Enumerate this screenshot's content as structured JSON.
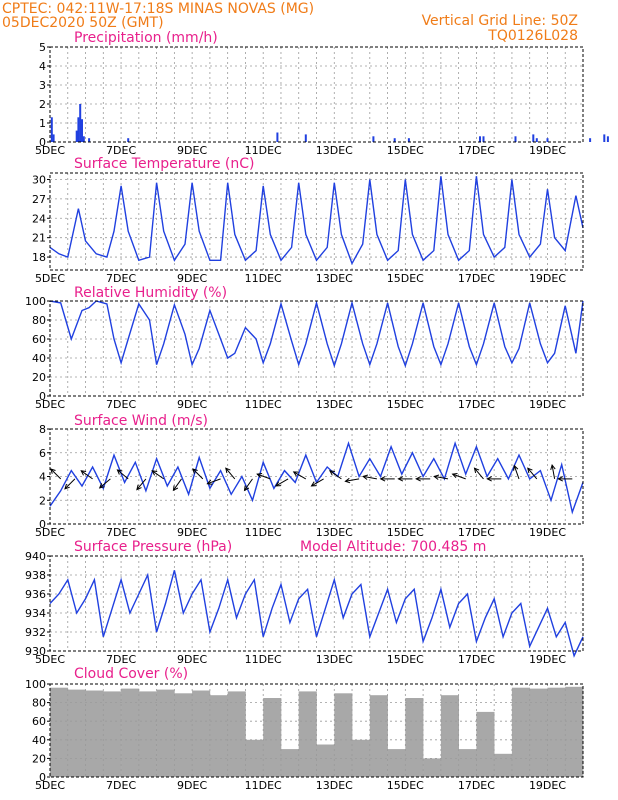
{
  "header": {
    "line1_left": "CPTEC:   042:11W-17:18S   MINAS NOVAS (MG)",
    "line2_left": "05DEC2020 50Z (GMT)",
    "line1_right": "Vertical Grid Line: 50Z",
    "line2_right": "TQ0126L028"
  },
  "colors": {
    "header": "#f07c18",
    "panel_title": "#e8208c",
    "series": "#2040e0",
    "cloud": "#a8a8a8",
    "wind_arrow": "#000000"
  },
  "chart_data": [
    {
      "type": "bar",
      "title": "Precipitation (mm/h)",
      "ylim": [
        0,
        5
      ],
      "yticks": [
        "0",
        "1",
        "2",
        "3",
        "4",
        "5"
      ],
      "xticks": [
        "5DEC",
        "7DEC",
        "9DEC",
        "11DEC",
        "13DEC",
        "15DEC",
        "17DEC",
        "19DEC"
      ],
      "xlim_days": [
        0,
        15
      ],
      "grid": true,
      "x": [
        0.05,
        0.1,
        0.75,
        0.8,
        0.85,
        0.9,
        0.95,
        1.1,
        2.2,
        6.4,
        7.2,
        9.1,
        9.7,
        10.1,
        12.1,
        12.2,
        13.1,
        13.6,
        13.7,
        14.0,
        15.2,
        15.6,
        15.7,
        16.4,
        16.5,
        16.9,
        17.1,
        17.2,
        17.3,
        17.4,
        17.5,
        17.6,
        17.7,
        17.8,
        17.9
      ],
      "values": [
        1.3,
        0.4,
        0.6,
        1.3,
        2.0,
        1.2,
        0.3,
        0.2,
        0.2,
        0.5,
        0.4,
        0.3,
        0.2,
        0.2,
        0.3,
        0.3,
        0.3,
        0.4,
        0.2,
        0.2,
        0.2,
        0.4,
        0.3,
        0.2,
        0.2,
        0.2,
        0.4,
        0.3,
        0.2,
        0.2,
        0.3,
        0.2,
        0.2,
        0.2,
        0.2
      ]
    },
    {
      "type": "line",
      "title": "Surface Temperature (nC)",
      "ylim": [
        16,
        31
      ],
      "yticks": [
        "18",
        "21",
        "24",
        "27",
        "30"
      ],
      "ytick_values": [
        18,
        21,
        24,
        27,
        30
      ],
      "xticks": [
        "5DEC",
        "7DEC",
        "9DEC",
        "11DEC",
        "13DEC",
        "15DEC",
        "17DEC",
        "19DEC"
      ],
      "xlim_days": [
        0,
        15
      ],
      "grid": true,
      "x": [
        0,
        0.25,
        0.5,
        0.8,
        1.0,
        1.3,
        1.6,
        1.8,
        2.0,
        2.2,
        2.5,
        2.8,
        3.0,
        3.2,
        3.5,
        3.8,
        4.0,
        4.2,
        4.5,
        4.8,
        5.0,
        5.2,
        5.5,
        5.8,
        6.0,
        6.2,
        6.5,
        6.8,
        7.0,
        7.2,
        7.5,
        7.8,
        8.0,
        8.2,
        8.5,
        8.8,
        9.0,
        9.2,
        9.5,
        9.8,
        10.0,
        10.2,
        10.5,
        10.8,
        11.0,
        11.2,
        11.5,
        11.8,
        12.0,
        12.2,
        12.5,
        12.8,
        13.0,
        13.2,
        13.5,
        13.8,
        14.0,
        14.2,
        14.5,
        14.8,
        15.0
      ],
      "values": [
        19.5,
        18.5,
        18.0,
        25.5,
        20.5,
        18.5,
        18.0,
        22.0,
        29.0,
        22.0,
        17.5,
        18.0,
        29.5,
        22.0,
        17.5,
        20.0,
        29.5,
        22.0,
        17.5,
        17.5,
        29.5,
        21.5,
        17.5,
        19.0,
        29.0,
        21.5,
        17.5,
        19.5,
        29.5,
        21.5,
        17.5,
        19.5,
        29.5,
        21.5,
        17.0,
        20.0,
        30.0,
        21.5,
        17.5,
        19.0,
        30.0,
        21.5,
        17.5,
        19.0,
        30.5,
        21.5,
        17.5,
        19.0,
        30.5,
        21.5,
        18.0,
        19.5,
        30.0,
        21.5,
        18.0,
        20.0,
        28.5,
        21.0,
        19.0,
        27.5,
        22.5
      ],
      "series_color": "#2040e0"
    },
    {
      "type": "line",
      "title": "Relative Humidity (%)",
      "ylim": [
        0,
        100
      ],
      "yticks": [
        "0",
        "20",
        "40",
        "60",
        "80",
        "100"
      ],
      "ytick_values": [
        0,
        20,
        40,
        60,
        80,
        100
      ],
      "xticks": [
        "5DEC",
        "7DEC",
        "9DEC",
        "11DEC",
        "13DEC",
        "15DEC",
        "17DEC",
        "19DEC"
      ],
      "xlim_days": [
        0,
        15
      ],
      "grid": true,
      "x": [
        0,
        0.3,
        0.6,
        0.9,
        1.1,
        1.3,
        1.6,
        1.8,
        2.0,
        2.2,
        2.5,
        2.8,
        3.0,
        3.2,
        3.5,
        3.8,
        4.0,
        4.2,
        4.5,
        4.8,
        5.0,
        5.2,
        5.5,
        5.8,
        6.0,
        6.2,
        6.5,
        6.8,
        7.0,
        7.2,
        7.5,
        7.8,
        8.0,
        8.2,
        8.5,
        8.8,
        9.0,
        9.2,
        9.5,
        9.8,
        10.0,
        10.2,
        10.5,
        10.8,
        11.0,
        11.2,
        11.5,
        11.8,
        12.0,
        12.2,
        12.5,
        12.8,
        13.0,
        13.2,
        13.5,
        13.8,
        14.0,
        14.2,
        14.5,
        14.8,
        15.0
      ],
      "values": [
        100,
        98,
        60,
        90,
        93,
        100,
        97,
        60,
        35,
        60,
        97,
        80,
        33,
        55,
        96,
        65,
        33,
        50,
        90,
        60,
        40,
        45,
        72,
        60,
        35,
        55,
        97,
        58,
        33,
        55,
        98,
        55,
        32,
        55,
        98,
        55,
        33,
        55,
        98,
        52,
        32,
        55,
        98,
        52,
        33,
        55,
        98,
        52,
        33,
        55,
        98,
        52,
        35,
        50,
        98,
        55,
        35,
        45,
        95,
        45,
        100
      ],
      "series_color": "#2040e0"
    },
    {
      "type": "line",
      "title": "Surface Wind (m/s)",
      "ylim": [
        0,
        8
      ],
      "yticks": [
        "0",
        "2",
        "4",
        "6",
        "8"
      ],
      "ytick_values": [
        0,
        2,
        4,
        6,
        8
      ],
      "xticks": [
        "5DEC",
        "7DEC",
        "9DEC",
        "11DEC",
        "13DEC",
        "15DEC",
        "17DEC",
        "19DEC"
      ],
      "xlim_days": [
        0,
        15
      ],
      "grid": true,
      "x": [
        0,
        0.3,
        0.6,
        0.9,
        1.2,
        1.5,
        1.8,
        2.1,
        2.4,
        2.7,
        3.0,
        3.3,
        3.6,
        3.9,
        4.2,
        4.5,
        4.8,
        5.1,
        5.4,
        5.7,
        6.0,
        6.3,
        6.6,
        6.9,
        7.2,
        7.5,
        7.8,
        8.1,
        8.4,
        8.7,
        9.0,
        9.3,
        9.6,
        9.9,
        10.2,
        10.5,
        10.8,
        11.1,
        11.4,
        11.7,
        12.0,
        12.3,
        12.6,
        12.9,
        13.2,
        13.5,
        13.8,
        14.1,
        14.4,
        14.7,
        15.0
      ],
      "values": [
        1.5,
        2.8,
        4.5,
        3.2,
        4.8,
        3.0,
        5.8,
        3.5,
        5.2,
        2.8,
        5.5,
        3.2,
        4.8,
        2.5,
        5.6,
        3.0,
        4.5,
        2.5,
        4.0,
        2.0,
        5.2,
        3.0,
        4.5,
        3.5,
        5.8,
        3.5,
        4.8,
        4.0,
        6.8,
        4.0,
        5.5,
        4.0,
        6.5,
        4.2,
        6.0,
        4.0,
        5.5,
        3.8,
        6.8,
        4.2,
        6.5,
        4.0,
        5.5,
        3.8,
        5.8,
        3.8,
        4.5,
        2.0,
        5.0,
        1.0,
        3.5
      ],
      "arrow_x": [
        0.3,
        0.7,
        1.2,
        1.7,
        2.2,
        2.7,
        3.2,
        3.7,
        4.3,
        4.8,
        5.2,
        5.7,
        6.2,
        6.7,
        7.2,
        7.7,
        8.2,
        8.7,
        9.2,
        9.7,
        10.2,
        10.7,
        11.2,
        11.7,
        12.2,
        12.7,
        13.2,
        13.7,
        14.2,
        14.7
      ],
      "arrow_dir_deg": [
        225,
        135,
        215,
        140,
        220,
        130,
        215,
        125,
        225,
        160,
        230,
        125,
        200,
        150,
        210,
        150,
        215,
        170,
        190,
        180,
        180,
        180,
        190,
        200,
        230,
        180,
        250,
        230,
        260,
        180
      ],
      "series_color": "#2040e0"
    },
    {
      "type": "line",
      "title": "Surface Pressure (hPa)",
      "annotation": "Model Altitude: 700.485 m",
      "ylim": [
        930,
        940
      ],
      "yticks": [
        "930",
        "932",
        "934",
        "936",
        "938",
        "940"
      ],
      "ytick_values": [
        930,
        932,
        934,
        936,
        938,
        940
      ],
      "xticks": [
        "5DEC",
        "7DEC",
        "9DEC",
        "11DEC",
        "13DEC",
        "15DEC",
        "17DEC",
        "19DEC"
      ],
      "xlim_days": [
        0,
        15
      ],
      "grid": true,
      "x": [
        0,
        0.25,
        0.5,
        0.75,
        1.0,
        1.25,
        1.5,
        1.75,
        2.0,
        2.25,
        2.5,
        2.75,
        3.0,
        3.25,
        3.5,
        3.75,
        4.0,
        4.25,
        4.5,
        4.75,
        5.0,
        5.25,
        5.5,
        5.75,
        6.0,
        6.25,
        6.5,
        6.75,
        7.0,
        7.25,
        7.5,
        7.75,
        8.0,
        8.25,
        8.5,
        8.75,
        9.0,
        9.25,
        9.5,
        9.75,
        10.0,
        10.25,
        10.5,
        10.75,
        11.0,
        11.25,
        11.5,
        11.75,
        12.0,
        12.25,
        12.5,
        12.75,
        13.0,
        13.25,
        13.5,
        13.75,
        14.0,
        14.25,
        14.5,
        14.75,
        15.0
      ],
      "values": [
        935.0,
        936.0,
        937.5,
        934.0,
        935.5,
        937.5,
        931.5,
        934.5,
        937.5,
        934.0,
        936.0,
        938.0,
        932.0,
        935.0,
        938.5,
        934.0,
        936.0,
        937.5,
        932.0,
        934.5,
        937.5,
        933.5,
        936.0,
        937.5,
        931.5,
        934.5,
        937.0,
        933.0,
        935.5,
        936.5,
        931.5,
        934.5,
        937.5,
        933.5,
        936.0,
        937.0,
        931.5,
        934.0,
        936.5,
        933.0,
        935.5,
        936.5,
        931.0,
        933.5,
        936.5,
        932.5,
        935.0,
        936.0,
        931.0,
        933.5,
        935.5,
        931.5,
        934.0,
        935.0,
        930.5,
        932.5,
        934.5,
        931.5,
        933.0,
        929.5,
        931.5
      ],
      "series_color": "#2040e0"
    },
    {
      "type": "bar",
      "title": "Cloud Cover (%)",
      "ylim": [
        0,
        100
      ],
      "yticks": [
        "0",
        "20",
        "40",
        "60",
        "80",
        "100"
      ],
      "xticks": [
        "5DEC",
        "7DEC",
        "9DEC",
        "11DEC",
        "13DEC",
        "15DEC",
        "17DEC",
        "19DEC"
      ],
      "xlim_days": [
        0,
        15
      ],
      "grid": true,
      "x": [
        0,
        0.5,
        1.0,
        1.5,
        2.0,
        2.5,
        3.0,
        3.5,
        4.0,
        4.5,
        5.0,
        5.5,
        6.0,
        6.5,
        7.0,
        7.5,
        8.0,
        8.5,
        9.0,
        9.5,
        10.0,
        10.5,
        11.0,
        11.5,
        12.0,
        12.5,
        13.0,
        13.5,
        14.0,
        14.5
      ],
      "values": [
        96,
        94,
        93,
        92,
        95,
        92,
        94,
        90,
        93,
        88,
        92,
        40,
        85,
        30,
        92,
        35,
        90,
        40,
        88,
        30,
        85,
        20,
        88,
        30,
        70,
        25,
        96,
        95,
        96,
        97
      ],
      "series_color": "#a8a8a8"
    }
  ]
}
